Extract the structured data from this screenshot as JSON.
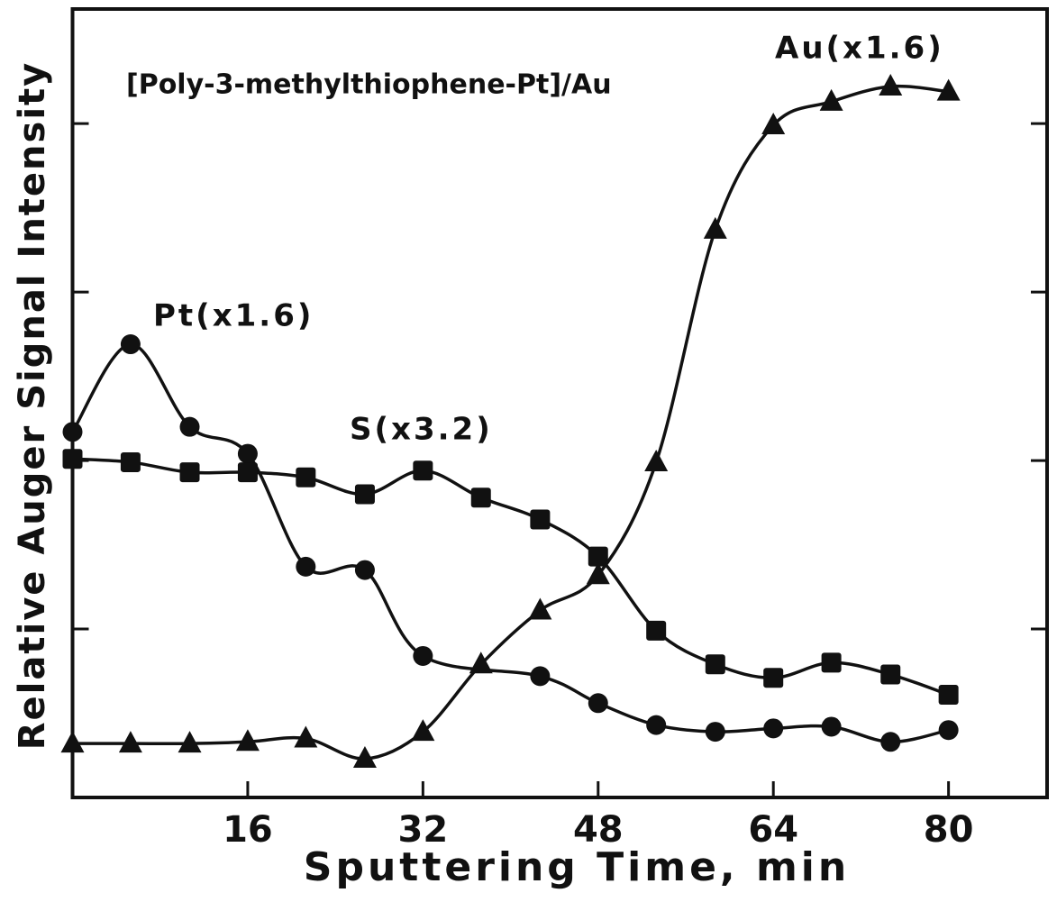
{
  "chart_data": {
    "type": "line",
    "title": "[Poly-3-methylthiophene-Pt]/Au",
    "x_label": "Sputtering Time, min",
    "y_label": "Relative Auger Signal Intensity",
    "xlim": [
      0,
      89
    ],
    "ylim": [
      0,
      4.68
    ],
    "xticks": [
      16,
      32,
      48,
      64,
      80
    ],
    "yticks": [
      1,
      2,
      3,
      4
    ],
    "series": [
      {
        "name": "Pt(x1.6)",
        "marker": "circle",
        "color": "#111111",
        "x": [
          0,
          5.3,
          10.7,
          16,
          21.3,
          26.7,
          32,
          42.7,
          48,
          53.3,
          58.7,
          64,
          69.3,
          74.7,
          80
        ],
        "values": [
          2.17,
          2.69,
          2.2,
          2.04,
          1.37,
          1.35,
          0.84,
          0.72,
          0.56,
          0.43,
          0.39,
          0.41,
          0.42,
          0.33,
          0.4
        ]
      },
      {
        "name": "S(x3.2)",
        "marker": "square",
        "color": "#111111",
        "x": [
          0,
          5.3,
          10.7,
          16,
          21.3,
          26.7,
          32,
          37.3,
          42.7,
          48,
          53.3,
          58.7,
          64,
          69.3,
          74.7,
          80
        ],
        "values": [
          2.01,
          1.99,
          1.93,
          1.93,
          1.9,
          1.8,
          1.94,
          1.78,
          1.65,
          1.43,
          0.99,
          0.79,
          0.71,
          0.8,
          0.73,
          0.61
        ]
      },
      {
        "name": "Au(x1.6)",
        "marker": "triangle",
        "color": "#111111",
        "x": [
          0,
          5.3,
          10.7,
          16,
          21.3,
          26.7,
          32,
          37.3,
          42.7,
          48,
          53.3,
          58.7,
          64,
          69.3,
          74.7,
          80
        ],
        "values": [
          0.32,
          0.32,
          0.32,
          0.33,
          0.35,
          0.23,
          0.39,
          0.79,
          1.11,
          1.32,
          1.99,
          3.37,
          3.99,
          4.13,
          4.22,
          4.19
        ]
      }
    ]
  }
}
